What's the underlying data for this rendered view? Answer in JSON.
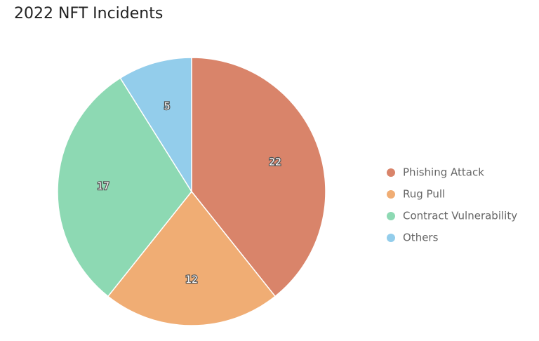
{
  "chart_data": {
    "type": "pie",
    "title": "2022 NFT Incidents",
    "categories": [
      "Phishing Attack",
      "Rug Pull",
      "Contract Vulnerability",
      "Others"
    ],
    "values": [
      22,
      12,
      17,
      5
    ],
    "colors": [
      "#d9846a",
      "#f0ad74",
      "#8dd9b3",
      "#93cdeb"
    ],
    "legend": "right"
  }
}
